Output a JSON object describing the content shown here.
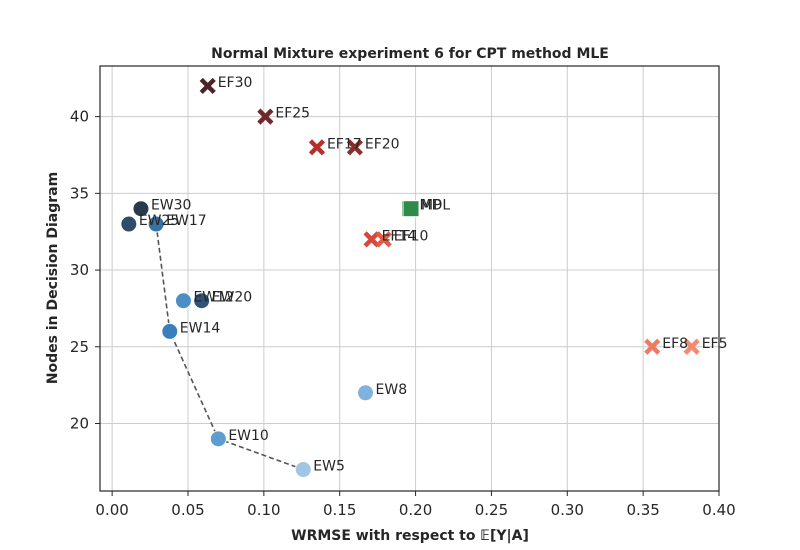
{
  "chart_data": {
    "type": "scatter",
    "title": "Normal Mixture experiment 6 for CPT method MLE",
    "xlabel": "WRMSE with respect to 𝔼[Y|A]",
    "ylabel": "Nodes in Decision Diagram",
    "xlim": [
      -0.008,
      0.4
    ],
    "ylim": [
      15.6,
      43.3
    ],
    "xticks": [
      0.0,
      0.05,
      0.1,
      0.15,
      0.2,
      0.25,
      0.3,
      0.35,
      0.4
    ],
    "xtick_labels": [
      "0.00",
      "0.05",
      "0.10",
      "0.15",
      "0.20",
      "0.25",
      "0.30",
      "0.35",
      "0.40"
    ],
    "yticks": [
      20,
      25,
      30,
      35,
      40
    ],
    "ytick_labels": [
      "20",
      "25",
      "30",
      "35",
      "40"
    ],
    "grid": true,
    "points": [
      {
        "label": "EF30",
        "x": 0.063,
        "y": 42,
        "marker": "x",
        "color": "#4b2626"
      },
      {
        "label": "EF25",
        "x": 0.101,
        "y": 40,
        "marker": "x",
        "color": "#6e2a2a"
      },
      {
        "label": "EF17",
        "x": 0.135,
        "y": 38,
        "marker": "x",
        "color": "#b5302b"
      },
      {
        "label": "EF20",
        "x": 0.16,
        "y": 38,
        "marker": "x",
        "color": "#8a2e2b"
      },
      {
        "label": "EF14",
        "x": 0.171,
        "y": 32,
        "marker": "x",
        "color": "#d9473a"
      },
      {
        "label": "EF10",
        "x": 0.179,
        "y": 32,
        "marker": "x",
        "color": "#e55a44"
      },
      {
        "label": "EF8",
        "x": 0.356,
        "y": 25,
        "marker": "x",
        "color": "#ef7b63"
      },
      {
        "label": "EF5",
        "x": 0.382,
        "y": 25,
        "marker": "x",
        "color": "#f08a70"
      },
      {
        "label": "MDL",
        "x": 0.196,
        "y": 34,
        "marker": "square",
        "color": "#2e8b4a"
      },
      {
        "label": "MP",
        "x": 0.197,
        "y": 34,
        "marker": "square",
        "color": "#2e8b4a"
      },
      {
        "label": "EW30",
        "x": 0.019,
        "y": 34,
        "marker": "circle",
        "color": "#2a3a4d"
      },
      {
        "label": "EW25",
        "x": 0.011,
        "y": 33,
        "marker": "circle",
        "color": "#2f4d6b"
      },
      {
        "label": "EW17",
        "x": 0.029,
        "y": 33,
        "marker": "circle",
        "color": "#3673a5"
      },
      {
        "label": "EW12",
        "x": 0.047,
        "y": 28,
        "marker": "circle",
        "color": "#4a8fc8"
      },
      {
        "label": "EW20",
        "x": 0.059,
        "y": 28,
        "marker": "circle",
        "color": "#2f5478"
      },
      {
        "label": "EW14",
        "x": 0.038,
        "y": 26,
        "marker": "circle",
        "color": "#3a7fbb"
      },
      {
        "label": "EW10",
        "x": 0.07,
        "y": 19,
        "marker": "circle",
        "color": "#5d9dd0"
      },
      {
        "label": "EW8",
        "x": 0.167,
        "y": 22,
        "marker": "circle",
        "color": "#7fb2dc"
      },
      {
        "label": "EW5",
        "x": 0.126,
        "y": 17,
        "marker": "circle",
        "color": "#a0c6e6"
      }
    ],
    "pareto_front": [
      {
        "x": 0.029,
        "y": 33
      },
      {
        "x": 0.038,
        "y": 26
      },
      {
        "x": 0.07,
        "y": 19
      },
      {
        "x": 0.126,
        "y": 17
      }
    ],
    "mdl_mp_connector": [
      {
        "x": 0.193,
        "y": 34.5
      },
      {
        "x": 0.193,
        "y": 33.6
      }
    ]
  }
}
